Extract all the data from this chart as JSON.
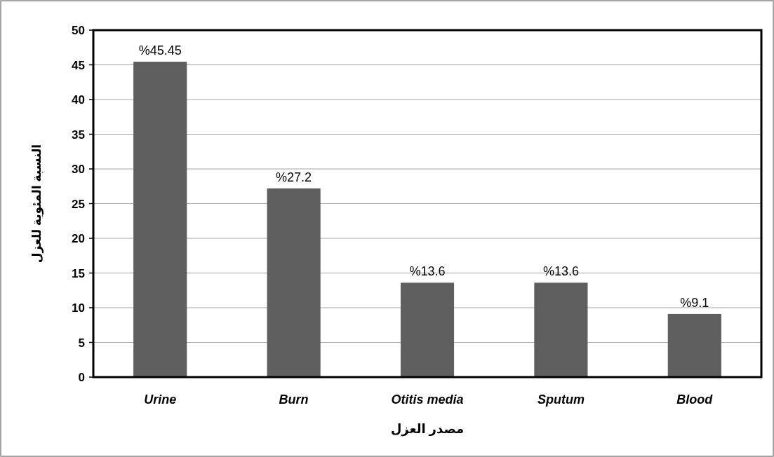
{
  "chart_data": {
    "type": "bar",
    "xlabel": "مصدر العزل",
    "ylabel": "النسبة المئوية للعزل",
    "categories": [
      "Urine",
      "Burn",
      "Otitis media",
      "Sputum",
      "Blood"
    ],
    "values": [
      45.45,
      27.2,
      13.6,
      13.6,
      9.1
    ],
    "value_labels": [
      "%45.45",
      "%27.2",
      "%13.6",
      "%13.6",
      "%9.1"
    ],
    "color": "#5f5f5f",
    "ylim": [
      0,
      50
    ],
    "yticks": [
      0,
      5,
      10,
      15,
      20,
      25,
      30,
      35,
      40,
      45,
      50
    ],
    "grid": "y"
  }
}
